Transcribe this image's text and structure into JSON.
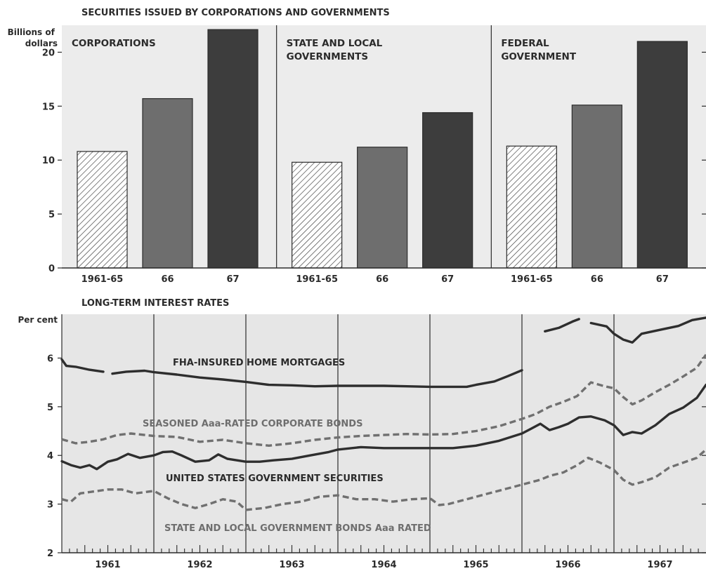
{
  "chart_data": [
    {
      "type": "bar",
      "title": "SECURITIES ISSUED BY CORPORATIONS AND GOVERNMENTS",
      "ylabel": "Billions of dollars",
      "ylim": [
        0,
        22.5
      ],
      "yticks": [
        0,
        5,
        10,
        15,
        20
      ],
      "colors": [
        "hatched",
        "#6e6e6e",
        "#3d3d3d"
      ],
      "panels": [
        {
          "title": "CORPORATIONS",
          "categories": [
            "1961-65",
            "66",
            "67"
          ],
          "values": [
            10.8,
            15.7,
            22.1
          ]
        },
        {
          "title": "STATE AND LOCAL GOVERNMENTS",
          "categories": [
            "1961-65",
            "66",
            "67"
          ],
          "values": [
            9.8,
            11.2,
            14.4
          ]
        },
        {
          "title": "FEDERAL GOVERNMENT",
          "categories": [
            "1961-65",
            "66",
            "67"
          ],
          "values": [
            11.3,
            15.1,
            21.0
          ]
        }
      ]
    },
    {
      "type": "line",
      "title": "LONG-TERM INTEREST RATES",
      "ylabel": "Per cent",
      "ylim": [
        2,
        6.9
      ],
      "yticks": [
        2,
        3,
        4,
        5,
        6
      ],
      "xlim": [
        1961.0,
        1968.0
      ],
      "x_tick_labels": [
        "1961",
        "1962",
        "1963",
        "1964",
        "1965",
        "1966",
        "1967"
      ],
      "series": [
        {
          "name": "FHA-INSURED HOME MORTGAGES",
          "style": "solid",
          "color": "#2e2e2e",
          "segments": [
            [
              [
                1961.0,
                5.97
              ],
              [
                1961.05,
                5.84
              ],
              [
                1961.15,
                5.82
              ],
              [
                1961.3,
                5.76
              ],
              [
                1961.45,
                5.72
              ]
            ],
            [
              [
                1961.55,
                5.68
              ],
              [
                1961.7,
                5.72
              ],
              [
                1961.9,
                5.74
              ],
              [
                1962.0,
                5.71
              ],
              [
                1962.25,
                5.66
              ],
              [
                1962.5,
                5.6
              ],
              [
                1962.75,
                5.56
              ],
              [
                1963.0,
                5.51
              ],
              [
                1963.25,
                5.45
              ],
              [
                1963.5,
                5.44
              ],
              [
                1963.75,
                5.42
              ],
              [
                1964.0,
                5.43
              ],
              [
                1964.25,
                5.43
              ],
              [
                1964.5,
                5.43
              ],
              [
                1964.75,
                5.42
              ],
              [
                1965.0,
                5.41
              ],
              [
                1965.25,
                5.41
              ],
              [
                1965.4,
                5.41
              ],
              [
                1965.5,
                5.45
              ],
              [
                1965.7,
                5.52
              ],
              [
                1965.85,
                5.63
              ],
              [
                1966.0,
                5.75
              ]
            ],
            [
              [
                1966.25,
                6.55
              ],
              [
                1966.4,
                6.62
              ],
              [
                1966.55,
                6.75
              ],
              [
                1966.62,
                6.8
              ]
            ],
            [
              [
                1966.75,
                6.72
              ],
              [
                1966.92,
                6.65
              ],
              [
                1967.0,
                6.5
              ],
              [
                1967.1,
                6.38
              ],
              [
                1967.2,
                6.32
              ],
              [
                1967.3,
                6.5
              ],
              [
                1967.5,
                6.58
              ],
              [
                1967.7,
                6.66
              ],
              [
                1967.85,
                6.78
              ],
              [
                1968.0,
                6.83
              ]
            ]
          ]
        },
        {
          "name": "SEASONED Aaa-RATED CORPORATE BONDS",
          "style": "dashed",
          "color": "#707070",
          "segments": [
            [
              [
                1961.0,
                4.33
              ],
              [
                1961.15,
                4.25
              ],
              [
                1961.3,
                4.28
              ],
              [
                1961.45,
                4.33
              ],
              [
                1961.6,
                4.42
              ],
              [
                1961.75,
                4.45
              ],
              [
                1961.9,
                4.42
              ],
              [
                1962.0,
                4.4
              ],
              [
                1962.25,
                4.38
              ],
              [
                1962.4,
                4.32
              ],
              [
                1962.5,
                4.28
              ],
              [
                1962.75,
                4.32
              ],
              [
                1963.0,
                4.25
              ],
              [
                1963.25,
                4.2
              ],
              [
                1963.5,
                4.25
              ],
              [
                1963.75,
                4.32
              ],
              [
                1964.0,
                4.37
              ],
              [
                1964.25,
                4.4
              ],
              [
                1964.5,
                4.42
              ],
              [
                1964.75,
                4.44
              ],
              [
                1965.0,
                4.43
              ],
              [
                1965.25,
                4.44
              ],
              [
                1965.5,
                4.5
              ],
              [
                1965.75,
                4.6
              ],
              [
                1966.0,
                4.75
              ],
              [
                1966.15,
                4.85
              ],
              [
                1966.3,
                5.0
              ],
              [
                1966.45,
                5.1
              ],
              [
                1966.6,
                5.22
              ],
              [
                1966.75,
                5.5
              ],
              [
                1966.9,
                5.42
              ],
              [
                1967.0,
                5.38
              ],
              [
                1967.1,
                5.2
              ],
              [
                1967.2,
                5.05
              ],
              [
                1967.3,
                5.13
              ],
              [
                1967.45,
                5.3
              ],
              [
                1967.6,
                5.45
              ],
              [
                1967.75,
                5.62
              ],
              [
                1967.9,
                5.8
              ],
              [
                1968.0,
                6.07
              ]
            ]
          ]
        },
        {
          "name": "UNITED STATES GOVERNMENT SECURITIES",
          "style": "solid",
          "color": "#2e2e2e",
          "segments": [
            [
              [
                1961.0,
                3.88
              ],
              [
                1961.1,
                3.8
              ],
              [
                1961.2,
                3.75
              ],
              [
                1961.3,
                3.8
              ],
              [
                1961.38,
                3.72
              ],
              [
                1961.5,
                3.87
              ],
              [
                1961.6,
                3.92
              ],
              [
                1961.72,
                4.03
              ],
              [
                1961.85,
                3.95
              ],
              [
                1962.0,
                4.0
              ],
              [
                1962.1,
                4.07
              ],
              [
                1962.2,
                4.08
              ],
              [
                1962.3,
                4.0
              ],
              [
                1962.45,
                3.87
              ],
              [
                1962.6,
                3.9
              ],
              [
                1962.7,
                4.02
              ],
              [
                1962.8,
                3.93
              ],
              [
                1963.0,
                3.87
              ],
              [
                1963.15,
                3.87
              ],
              [
                1963.3,
                3.9
              ],
              [
                1963.5,
                3.93
              ],
              [
                1963.7,
                4.0
              ],
              [
                1963.9,
                4.07
              ],
              [
                1964.0,
                4.12
              ],
              [
                1964.25,
                4.17
              ],
              [
                1964.5,
                4.15
              ],
              [
                1964.75,
                4.15
              ],
              [
                1965.0,
                4.15
              ],
              [
                1965.25,
                4.15
              ],
              [
                1965.5,
                4.2
              ],
              [
                1965.75,
                4.3
              ],
              [
                1966.0,
                4.45
              ],
              [
                1966.1,
                4.55
              ],
              [
                1966.2,
                4.65
              ],
              [
                1966.3,
                4.52
              ],
              [
                1966.4,
                4.58
              ],
              [
                1966.5,
                4.65
              ],
              [
                1966.62,
                4.78
              ],
              [
                1966.75,
                4.8
              ],
              [
                1966.9,
                4.72
              ],
              [
                1967.0,
                4.62
              ],
              [
                1967.1,
                4.42
              ],
              [
                1967.2,
                4.48
              ],
              [
                1967.3,
                4.45
              ],
              [
                1967.45,
                4.62
              ],
              [
                1967.6,
                4.85
              ],
              [
                1967.75,
                4.98
              ],
              [
                1967.9,
                5.18
              ],
              [
                1968.0,
                5.45
              ]
            ]
          ]
        },
        {
          "name": "STATE AND LOCAL GOVERNMENT BONDS Aaa RATED",
          "style": "dashed",
          "color": "#707070",
          "segments": [
            [
              [
                1961.0,
                3.1
              ],
              [
                1961.1,
                3.05
              ],
              [
                1961.2,
                3.22
              ],
              [
                1961.35,
                3.26
              ],
              [
                1961.5,
                3.3
              ],
              [
                1961.65,
                3.3
              ],
              [
                1961.8,
                3.22
              ],
              [
                1962.0,
                3.27
              ],
              [
                1962.15,
                3.12
              ],
              [
                1962.3,
                3.0
              ],
              [
                1962.45,
                2.92
              ],
              [
                1962.6,
                3.0
              ],
              [
                1962.75,
                3.1
              ],
              [
                1962.9,
                3.05
              ],
              [
                1963.0,
                2.88
              ],
              [
                1963.2,
                2.92
              ],
              [
                1963.4,
                3.0
              ],
              [
                1963.6,
                3.05
              ],
              [
                1963.8,
                3.15
              ],
              [
                1964.0,
                3.18
              ],
              [
                1964.2,
                3.1
              ],
              [
                1964.4,
                3.1
              ],
              [
                1964.6,
                3.05
              ],
              [
                1964.8,
                3.1
              ],
              [
                1965.0,
                3.12
              ],
              [
                1965.1,
                2.98
              ],
              [
                1965.2,
                3.0
              ],
              [
                1965.4,
                3.1
              ],
              [
                1965.6,
                3.2
              ],
              [
                1965.8,
                3.3
              ],
              [
                1966.0,
                3.4
              ],
              [
                1966.2,
                3.5
              ],
              [
                1966.3,
                3.58
              ],
              [
                1966.45,
                3.65
              ],
              [
                1966.6,
                3.8
              ],
              [
                1966.72,
                3.95
              ],
              [
                1966.85,
                3.85
              ],
              [
                1967.0,
                3.7
              ],
              [
                1967.1,
                3.5
              ],
              [
                1967.2,
                3.4
              ],
              [
                1967.3,
                3.45
              ],
              [
                1967.45,
                3.55
              ],
              [
                1967.6,
                3.75
              ],
              [
                1967.75,
                3.85
              ],
              [
                1967.9,
                3.95
              ],
              [
                1968.0,
                4.12
              ]
            ]
          ]
        }
      ]
    }
  ]
}
